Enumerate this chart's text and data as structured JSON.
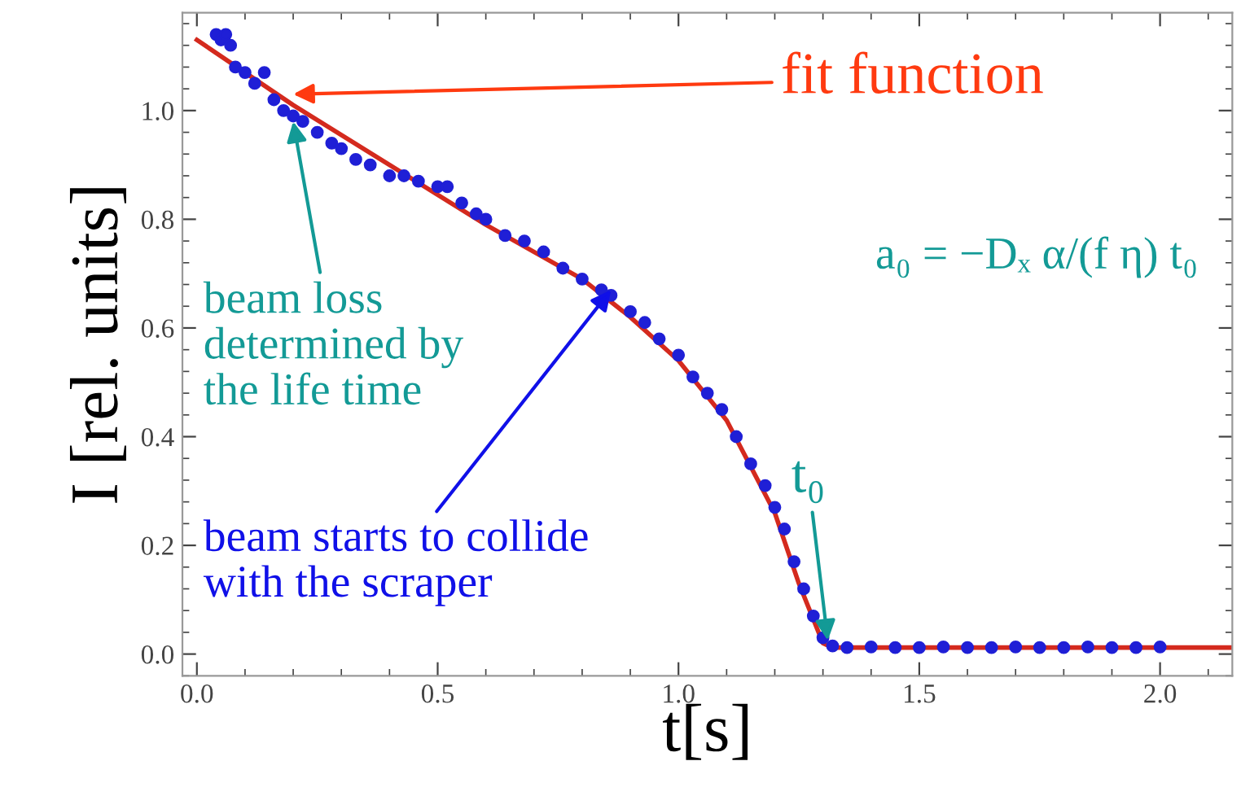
{
  "chart_data": {
    "type": "scatter",
    "xlabel": "t[s]",
    "ylabel": "I [rel. units]",
    "xlim": [
      -0.03,
      2.15
    ],
    "ylim": [
      -0.04,
      1.18
    ],
    "xticks": [
      {
        "value": 0,
        "label": "0.0"
      },
      {
        "value": 0.5,
        "label": "0.5"
      },
      {
        "value": 1,
        "label": "1.0"
      },
      {
        "value": 1.5,
        "label": "1.5"
      },
      {
        "value": 2,
        "label": "2.0"
      }
    ],
    "yticks": [
      {
        "value": 0,
        "label": "0.0"
      },
      {
        "value": 0.2,
        "label": "0.2"
      },
      {
        "value": 0.4,
        "label": "0.4"
      },
      {
        "value": 0.6,
        "label": "0.6"
      },
      {
        "value": 0.8,
        "label": "0.8"
      },
      {
        "value": 1,
        "label": "1.0"
      }
    ],
    "grid": false,
    "legend": false,
    "series": [
      {
        "type": "line",
        "color": "#d42a1e",
        "x": [
          0,
          0.2,
          0.4,
          0.6,
          0.8,
          0.9,
          1.0,
          1.1,
          1.2,
          1.25,
          1.3,
          1.32,
          1.5,
          2.0,
          2.15
        ],
        "values": [
          1.13,
          1.01,
          0.9,
          0.79,
          0.69,
          0.62,
          0.54,
          0.43,
          0.26,
          0.13,
          0.02,
          0.012,
          0.012,
          0.012,
          0.012
        ]
      },
      {
        "color": "#1f1fd6",
        "marker": "circle",
        "x": [
          0.04,
          0.05,
          0.06,
          0.07,
          0.08,
          0.1,
          0.12,
          0.14,
          0.16,
          0.18,
          0.2,
          0.22,
          0.25,
          0.28,
          0.3,
          0.33,
          0.36,
          0.4,
          0.43,
          0.46,
          0.5,
          0.52,
          0.55,
          0.58,
          0.6,
          0.64,
          0.68,
          0.72,
          0.76,
          0.8,
          0.84,
          0.86,
          0.9,
          0.93,
          0.96,
          1.0,
          1.03,
          1.06,
          1.09,
          1.12,
          1.15,
          1.18,
          1.2,
          1.22,
          1.24,
          1.26,
          1.28,
          1.3,
          1.32,
          1.35,
          1.4,
          1.45,
          1.5,
          1.55,
          1.6,
          1.65,
          1.7,
          1.75,
          1.8,
          1.85,
          1.9,
          1.95,
          2.0
        ],
        "values": [
          1.14,
          1.13,
          1.14,
          1.12,
          1.08,
          1.07,
          1.05,
          1.07,
          1.02,
          1.0,
          0.99,
          0.98,
          0.96,
          0.94,
          0.93,
          0.91,
          0.9,
          0.88,
          0.88,
          0.87,
          0.86,
          0.86,
          0.83,
          0.81,
          0.8,
          0.77,
          0.76,
          0.74,
          0.71,
          0.69,
          0.67,
          0.66,
          0.63,
          0.61,
          0.58,
          0.55,
          0.51,
          0.48,
          0.45,
          0.4,
          0.35,
          0.31,
          0.27,
          0.23,
          0.17,
          0.12,
          0.07,
          0.03,
          0.015,
          0.012,
          0.013,
          0.012,
          0.012,
          0.013,
          0.012,
          0.012,
          0.013,
          0.012,
          0.012,
          0.013,
          0.012,
          0.012,
          0.013
        ]
      }
    ],
    "annotations": [
      {
        "text": "fit function",
        "x": 0.2,
        "y": 1.03
      },
      {
        "text": "beam loss\ndetermined by\nthe life time",
        "x": 0.2,
        "y": 0.98
      },
      {
        "text": "beam starts to collide\nwith the scraper",
        "x": 0.86,
        "y": 0.67
      },
      {
        "text": "t₀",
        "x": 1.31,
        "y": 0.025
      },
      "a₀ = −Dₓ α/(f η) t₀"
    ]
  }
}
